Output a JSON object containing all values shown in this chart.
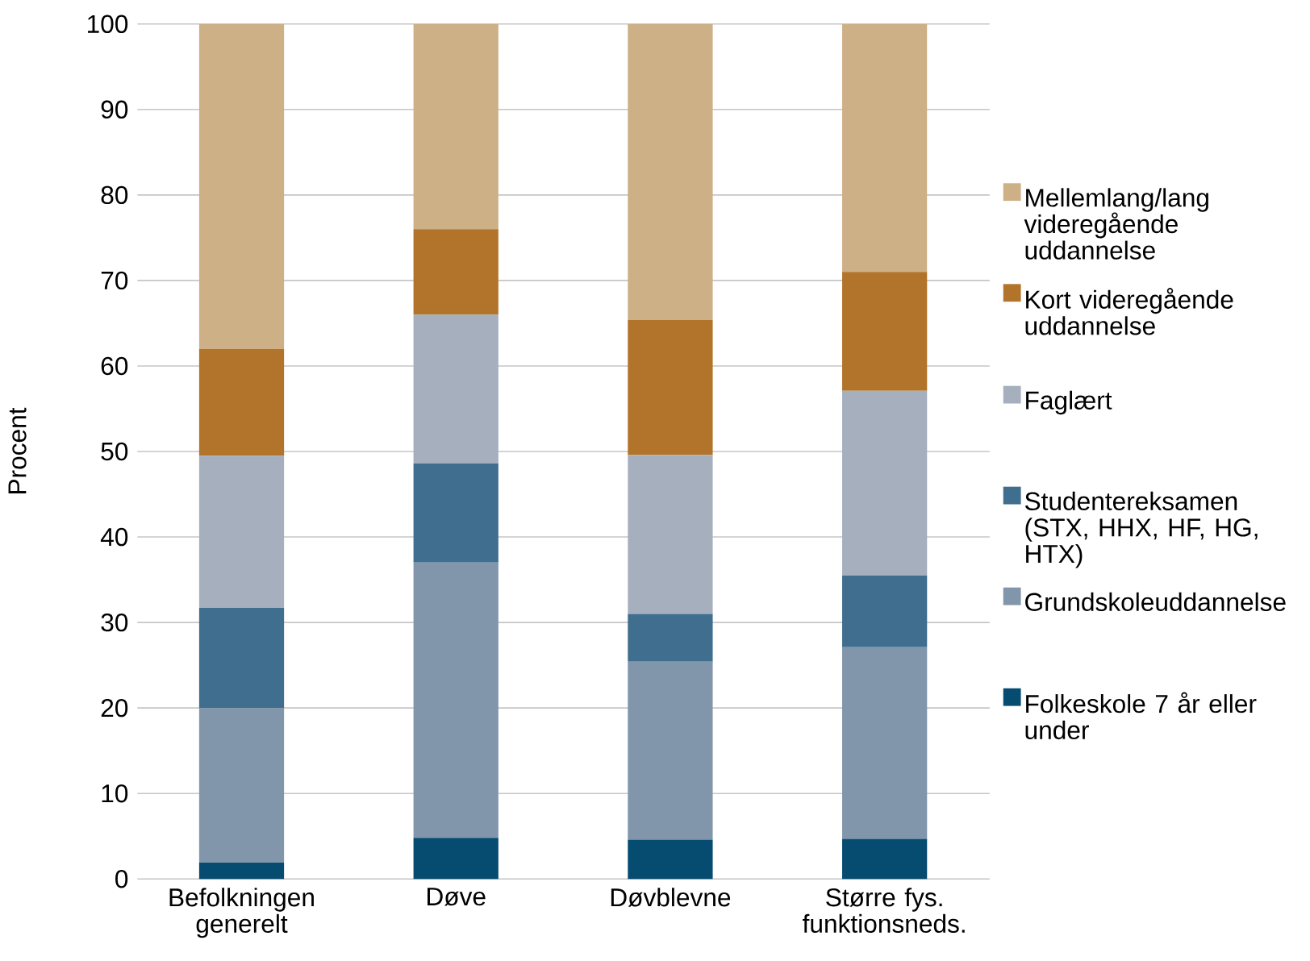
{
  "chart_data": {
    "type": "bar",
    "stacked": true,
    "ylabel": "Procent",
    "categories": [
      "Befolkningen generelt",
      "Døve",
      "Døvblevne",
      "Større fys. funktionsneds."
    ],
    "series": [
      {
        "name": "Folkeskole 7 år eller under",
        "color": "#064b70",
        "values": [
          1.9,
          4.8,
          4.6,
          4.7
        ]
      },
      {
        "name": "Grundskoleuddannelse",
        "color": "#8196ab",
        "values": [
          18.1,
          32.2,
          20.8,
          22.4
        ]
      },
      {
        "name": "Studentereksamen (STX, HHX, HF, HG, HTX)",
        "color": "#3f6e8f",
        "values": [
          11.7,
          11.6,
          5.6,
          8.4
        ]
      },
      {
        "name": "Faglært",
        "color": "#a6afbe",
        "values": [
          17.8,
          17.4,
          18.6,
          21.6
        ]
      },
      {
        "name": "Kort videregående uddannelse",
        "color": "#b2742a",
        "values": [
          12.5,
          10.0,
          15.8,
          13.9
        ]
      },
      {
        "name": "Mellemlang/lang videregående uddannelse",
        "color": "#cdb085",
        "values": [
          38.0,
          24.0,
          34.6,
          29.0
        ]
      }
    ],
    "ylim": [
      0,
      100
    ],
    "yticks": [
      0,
      10,
      20,
      30,
      40,
      50,
      60,
      70,
      80,
      90,
      100
    ],
    "grid": "y",
    "legend": "right"
  }
}
